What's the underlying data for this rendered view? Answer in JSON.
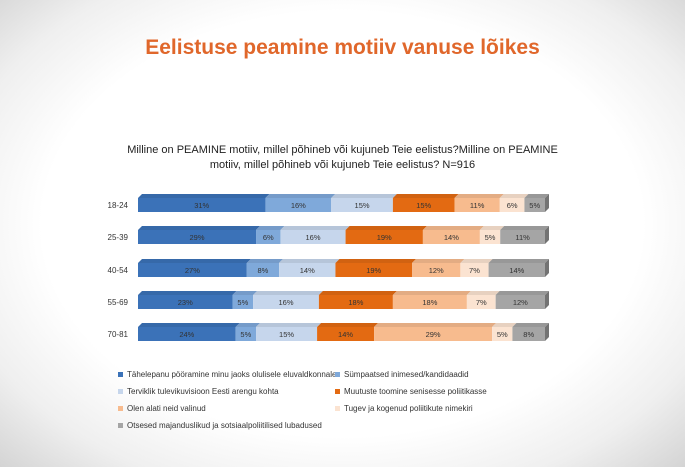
{
  "header": {
    "title": "Eelistuse peamine motiiv vanuse lõikes"
  },
  "chart_data": {
    "type": "bar",
    "stacked": "percent",
    "orientation": "horizontal",
    "title": "Milline on PEAMINE motiiv, millel põhineb või kujuneb Teie eelistus?Milline on PEAMINE motiiv, millel põhineb või kujuneb Teie eelistus? N=916",
    "categories": [
      "18-24",
      "25-39",
      "40-54",
      "55-69",
      "70-81"
    ],
    "series": [
      {
        "name": "Tähelepanu pööramine minu jaoks olulisele eluvaldkonnale",
        "color": "#3b72b8",
        "values": [
          31,
          29,
          27,
          23,
          24
        ]
      },
      {
        "name": "Sümpaatsed inimesed/kandidaadid",
        "color": "#7fa9da",
        "values": [
          16,
          6,
          8,
          5,
          5
        ]
      },
      {
        "name": "Terviklik tulevikuvisioon Eesti arengu kohta",
        "color": "#c6d6ec",
        "values": [
          15,
          16,
          14,
          16,
          15
        ]
      },
      {
        "name": "Muutuste toomine senisesse poliitikasse",
        "color": "#e36a12",
        "values": [
          15,
          19,
          19,
          18,
          14
        ]
      },
      {
        "name": "Olen alati neid valinud",
        "color": "#f7bb8e",
        "values": [
          11,
          14,
          12,
          18,
          29
        ]
      },
      {
        "name": "Tugev ja kogenud poliitikute nimekiri",
        "color": "#fbe3d1",
        "values": [
          6,
          5,
          7,
          7,
          5
        ]
      },
      {
        "name": "Otsesed majanduslikud ja sotsiaalpoliitilised lubadused",
        "color": "#a5a5a5",
        "values": [
          5,
          11,
          14,
          12,
          8
        ]
      }
    ],
    "value_suffix": "%",
    "legend_position": "bottom",
    "grid": false
  }
}
